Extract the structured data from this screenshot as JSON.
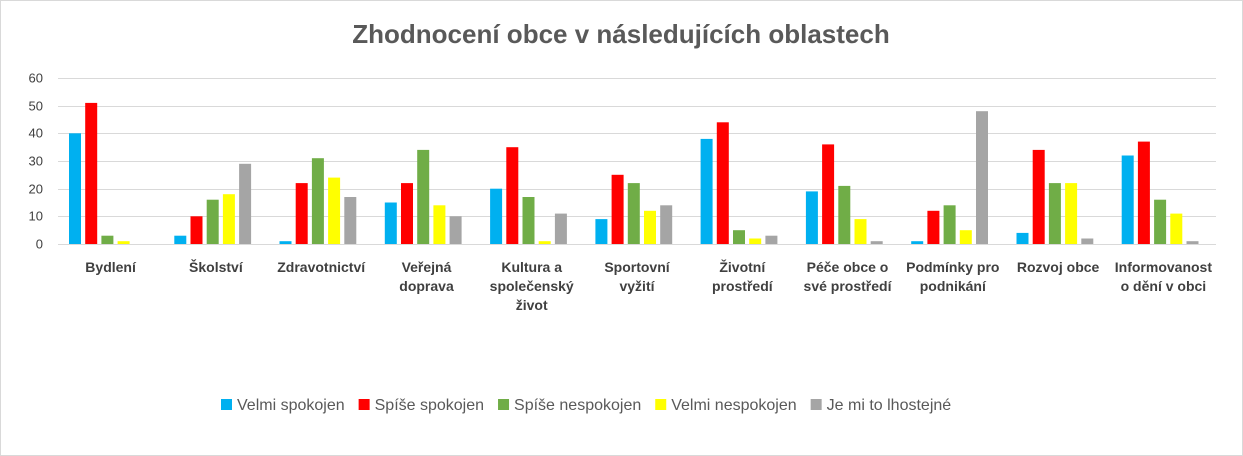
{
  "chart_data": {
    "type": "bar",
    "title": "Zhodnocení obce v následujících oblastech",
    "xlabel": "",
    "ylabel": "",
    "ylim": [
      0,
      60
    ],
    "yticks": [
      0,
      10,
      20,
      30,
      40,
      50,
      60
    ],
    "grid": true,
    "legend_position": "bottom",
    "categories": [
      [
        "Bydlení"
      ],
      [
        "Školství"
      ],
      [
        "Zdravotnictví"
      ],
      [
        "Veřejná",
        "doprava"
      ],
      [
        "Kultura a",
        "společenský",
        "život"
      ],
      [
        "Sportovní",
        "vyžití"
      ],
      [
        "Životní",
        "prostředí"
      ],
      [
        "Péče obce o",
        "své prostředí"
      ],
      [
        "Podmínky pro",
        "podnikání"
      ],
      [
        "Rozvoj obce"
      ],
      [
        "Informovanost",
        "o dění v obci"
      ]
    ],
    "series": [
      {
        "name": "Velmi spokojen",
        "color": "#00b0f0",
        "values": [
          40,
          3,
          1,
          15,
          20,
          9,
          38,
          19,
          1,
          4,
          32
        ]
      },
      {
        "name": "Spíše spokojen",
        "color": "#ff0000",
        "values": [
          51,
          10,
          22,
          22,
          35,
          25,
          44,
          36,
          12,
          34,
          37
        ]
      },
      {
        "name": "Spíše nespokojen",
        "color": "#70ad47",
        "values": [
          3,
          16,
          31,
          34,
          17,
          22,
          5,
          21,
          14,
          22,
          16
        ]
      },
      {
        "name": "Velmi nespokojen",
        "color": "#ffff00",
        "values": [
          1,
          18,
          24,
          14,
          1,
          12,
          2,
          9,
          5,
          22,
          11
        ]
      },
      {
        "name": "Je mi to lhostejné",
        "color": "#a5a5a5",
        "values": [
          0,
          29,
          17,
          10,
          11,
          14,
          3,
          1,
          48,
          2,
          1
        ]
      }
    ]
  }
}
